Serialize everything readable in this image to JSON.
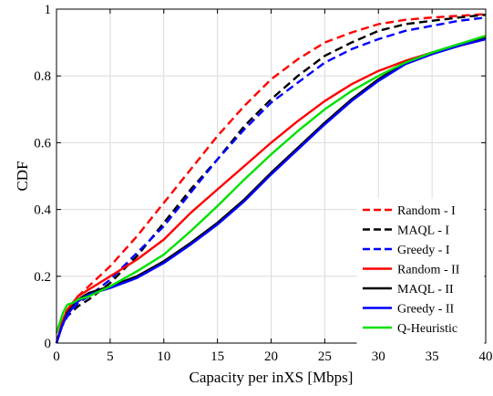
{
  "chart_data": {
    "type": "line",
    "xlabel": "Capacity per inXS [Mbps]",
    "ylabel": "CDF",
    "xlim": [
      0,
      40
    ],
    "ylim": [
      0,
      1
    ],
    "xticks": [
      0,
      5,
      10,
      15,
      20,
      25,
      30,
      35,
      40
    ],
    "yticks": [
      0,
      0.2,
      0.4,
      0.6,
      0.8,
      1
    ],
    "ytick_labels": [
      "0",
      "0.2",
      "0.4",
      "0.6",
      "0.8",
      "1"
    ],
    "grid": true,
    "legend_position": "bottom-right",
    "series": [
      {
        "name": "Random - I",
        "color": "#ff0000",
        "dash": "dashed",
        "x": [
          0,
          0.5,
          1,
          2,
          3,
          5,
          7.5,
          10,
          12.5,
          15,
          17.5,
          20,
          22.5,
          25,
          27.5,
          30,
          32.5,
          35,
          37.5,
          40
        ],
        "y": [
          0,
          0.06,
          0.1,
          0.14,
          0.17,
          0.23,
          0.32,
          0.42,
          0.52,
          0.62,
          0.71,
          0.79,
          0.85,
          0.9,
          0.93,
          0.955,
          0.968,
          0.975,
          0.98,
          0.985
        ]
      },
      {
        "name": "MAQL - I",
        "color": "#000000",
        "dash": "dashed",
        "x": [
          0,
          0.5,
          1,
          2,
          3,
          5,
          7.5,
          10,
          12.5,
          15,
          17.5,
          20,
          22.5,
          25,
          27.5,
          30,
          32.5,
          35,
          37.5,
          40
        ],
        "y": [
          0,
          0.05,
          0.08,
          0.11,
          0.13,
          0.18,
          0.26,
          0.36,
          0.46,
          0.55,
          0.65,
          0.73,
          0.8,
          0.86,
          0.9,
          0.935,
          0.955,
          0.965,
          0.975,
          0.983
        ]
      },
      {
        "name": "Greedy - I",
        "color": "#0000ff",
        "dash": "dashed",
        "x": [
          0,
          0.5,
          1,
          2,
          3,
          5,
          7.5,
          10,
          12.5,
          15,
          17.5,
          20,
          22.5,
          25,
          27.5,
          30,
          32.5,
          35,
          37.5,
          40
        ],
        "y": [
          0,
          0.05,
          0.08,
          0.12,
          0.14,
          0.19,
          0.27,
          0.35,
          0.45,
          0.55,
          0.64,
          0.72,
          0.78,
          0.84,
          0.88,
          0.91,
          0.935,
          0.95,
          0.965,
          0.975
        ]
      },
      {
        "name": "Random - II",
        "color": "#ff0000",
        "dash": "solid",
        "x": [
          0,
          0.5,
          1,
          2,
          3,
          5,
          7.5,
          10,
          12.5,
          15,
          17.5,
          20,
          22.5,
          25,
          27.5,
          30,
          32.5,
          35,
          37.5,
          40
        ],
        "y": [
          0,
          0.06,
          0.1,
          0.14,
          0.16,
          0.2,
          0.25,
          0.31,
          0.39,
          0.46,
          0.53,
          0.6,
          0.665,
          0.725,
          0.775,
          0.815,
          0.845,
          0.87,
          0.89,
          0.91
        ]
      },
      {
        "name": "MAQL - II",
        "color": "#000000",
        "dash": "solid",
        "x": [
          0,
          0.5,
          1,
          2,
          3,
          5,
          7.5,
          10,
          12.5,
          15,
          17.5,
          20,
          22.5,
          25,
          27.5,
          30,
          32.5,
          35,
          37.5,
          40
        ],
        "y": [
          0,
          0.05,
          0.09,
          0.13,
          0.15,
          0.17,
          0.2,
          0.245,
          0.3,
          0.36,
          0.43,
          0.51,
          0.585,
          0.66,
          0.73,
          0.79,
          0.84,
          0.87,
          0.895,
          0.915
        ]
      },
      {
        "name": "Greedy - II",
        "color": "#0000ff",
        "dash": "solid",
        "x": [
          0,
          0.5,
          1,
          2,
          3,
          5,
          7.5,
          10,
          12.5,
          15,
          17.5,
          20,
          22.5,
          25,
          27.5,
          30,
          32.5,
          35,
          37.5,
          40
        ],
        "y": [
          0,
          0.05,
          0.085,
          0.125,
          0.145,
          0.165,
          0.195,
          0.24,
          0.295,
          0.355,
          0.425,
          0.505,
          0.58,
          0.655,
          0.725,
          0.785,
          0.835,
          0.865,
          0.89,
          0.91
        ]
      },
      {
        "name": "Q-Heuristic",
        "color": "#00e000",
        "dash": "solid",
        "x": [
          0,
          0.3,
          0.6,
          1,
          1.5,
          2,
          3,
          5,
          7.5,
          10,
          12.5,
          15,
          17.5,
          20,
          22.5,
          25,
          27.5,
          30,
          32.5,
          35,
          37.5,
          40
        ],
        "y": [
          0.03,
          0.06,
          0.09,
          0.115,
          0.12,
          0.13,
          0.14,
          0.17,
          0.215,
          0.265,
          0.335,
          0.41,
          0.49,
          0.565,
          0.635,
          0.7,
          0.755,
          0.8,
          0.84,
          0.87,
          0.895,
          0.92
        ]
      }
    ]
  }
}
